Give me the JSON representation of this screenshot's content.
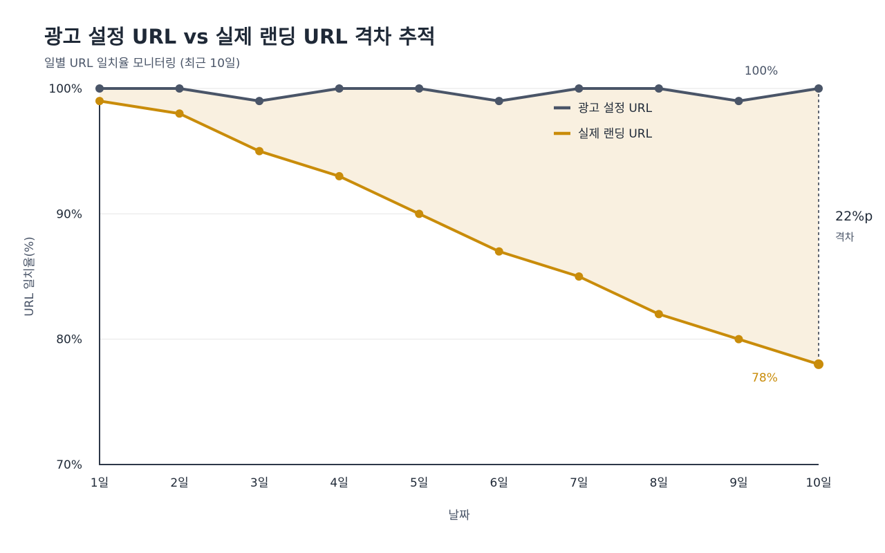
{
  "chart_data": {
    "type": "line",
    "title": "광고 설정 URL vs 실제 랜딩 URL 격차 추적",
    "subtitle": "일별 URL 일치율 모니터링 (최근 10일)",
    "xlabel": "날짜",
    "ylabel": "URL 일치율(%)",
    "ylim": [
      70,
      100
    ],
    "yticks": [
      "70%",
      "80%",
      "90%",
      "100%"
    ],
    "ytick_values": [
      70,
      80,
      90,
      100
    ],
    "categories": [
      "1일",
      "2일",
      "3일",
      "4일",
      "5일",
      "6일",
      "7일",
      "8일",
      "9일",
      "10일"
    ],
    "series": [
      {
        "name": "광고 설정 URL",
        "color": "#4a5568",
        "values": [
          100,
          100,
          99,
          100,
          100,
          99,
          100,
          100,
          99,
          100
        ]
      },
      {
        "name": "실제 랜딩 URL",
        "color": "#c98c0a",
        "values": [
          99,
          98,
          95,
          93,
          90,
          87,
          85,
          82,
          80,
          78
        ]
      }
    ],
    "fill_between_color": "#f9f0e0",
    "grid": true,
    "legend_position": "top-right",
    "annotations": {
      "end_top_label": "100%",
      "end_bottom_label": "78%",
      "gap_value": "22%p",
      "gap_label": "격차"
    }
  }
}
